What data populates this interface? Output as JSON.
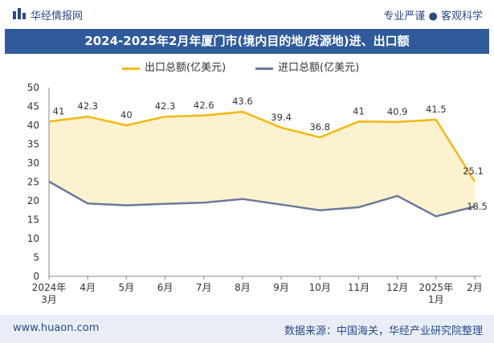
{
  "header": {
    "brand": "华经情报网",
    "tagline": "专业严谨 ● 客观科学"
  },
  "title": "2024-2025年2月年厦门市(境内目的地/货源地)进、出口额",
  "footer": {
    "website": "www.huaon.com",
    "source": "数据来源：中国海关，华经产业研究院整理"
  },
  "colors": {
    "export": "#f5b80e",
    "import": "#6a7a9c",
    "fill": "#fdf2cf",
    "titlebar": "#2f5a9c"
  },
  "chart_data": {
    "type": "area",
    "categories": [
      "2024年3月",
      "4月",
      "5月",
      "6月",
      "7月",
      "8月",
      "9月",
      "10月",
      "11月",
      "12月",
      "2025年1月",
      "2月"
    ],
    "series": [
      {
        "name": "出口总额(亿美元)",
        "values": [
          41,
          42.3,
          40,
          42.3,
          42.6,
          43.6,
          39.4,
          36.8,
          41,
          40.9,
          41.5,
          25.1
        ]
      },
      {
        "name": "进口总额(亿美元)",
        "values": [
          25.1,
          19.3,
          18.8,
          19.2,
          19.5,
          20.5,
          19.0,
          17.5,
          18.3,
          21.3,
          15.9,
          18.5
        ]
      }
    ],
    "data_labels": [
      "41",
      "42.3",
      "40",
      "42.3",
      "42.6",
      "43.6",
      "39.4",
      "36.8",
      "41",
      "40.9",
      "41.5",
      "25.1"
    ],
    "last_import_label": "18.5",
    "ylim": [
      0,
      50
    ],
    "yticks": [
      "0",
      "5",
      "10",
      "15",
      "20",
      "25",
      "30",
      "35",
      "40",
      "45",
      "50"
    ],
    "grid": false,
    "legend": "top"
  }
}
